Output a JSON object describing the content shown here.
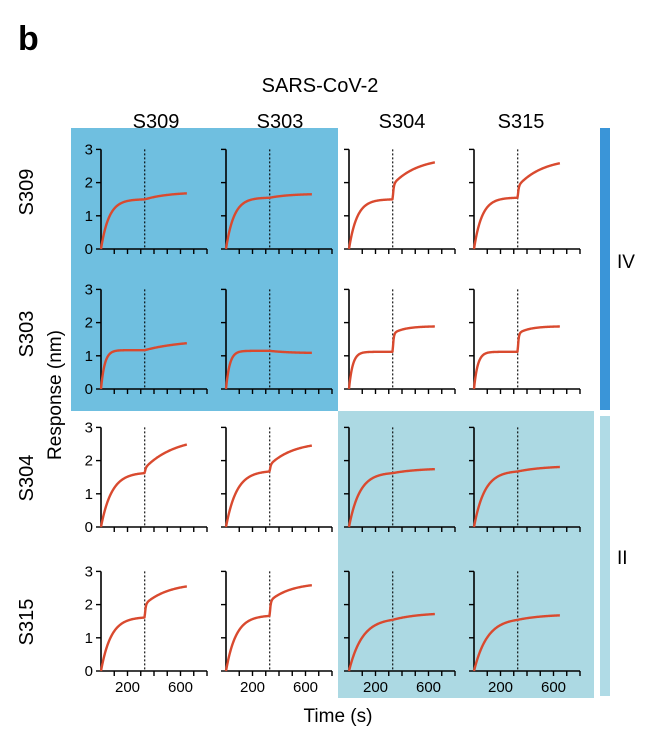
{
  "panel_letter": "b",
  "title": "SARS-CoV-2",
  "chart_data": {
    "type": "line",
    "title": "SARS-CoV-2",
    "xlabel": "Time (s)",
    "ylabel": "Response (nm)",
    "columns": [
      "S309",
      "S303",
      "S304",
      "S315"
    ],
    "rows": [
      "S309",
      "S303",
      "S304",
      "S315"
    ],
    "xlim": [
      0,
      800
    ],
    "ylim": [
      0,
      3
    ],
    "x_ticks": [
      200,
      600
    ],
    "y_ticks": [
      0,
      1,
      2,
      3
    ],
    "switch_time": 330,
    "end_time": 650,
    "grid": false,
    "legend": "none",
    "curve_color": "#d94a2f",
    "groups": [
      {
        "label": "IV",
        "members": [
          "S309",
          "S303"
        ],
        "color": "#3a95d8",
        "fill": "#6fbfe0"
      },
      {
        "label": "II",
        "members": [
          "S304",
          "S315"
        ],
        "color": "#b0dbe6",
        "fill": "#acd9e3"
      }
    ],
    "panels": [
      {
        "row": "S309",
        "col": "S309",
        "a1": 1.5,
        "t1": 60,
        "a2": 0.22,
        "t2": 180
      },
      {
        "row": "S309",
        "col": "S303",
        "a1": 1.55,
        "t1": 60,
        "a2": 0.12,
        "t2": 150
      },
      {
        "row": "S309",
        "col": "S304",
        "a1": 1.5,
        "t1": 60,
        "jump": 0.45,
        "a2": 0.82,
        "t2": 190
      },
      {
        "row": "S309",
        "col": "S315",
        "a1": 1.55,
        "t1": 60,
        "jump": 0.35,
        "a2": 0.85,
        "t2": 190
      },
      {
        "row": "S303",
        "col": "S309",
        "a1": 1.17,
        "t1": 28,
        "a2": 0.32,
        "t2": 300
      },
      {
        "row": "S303",
        "col": "S303",
        "a1": 1.15,
        "t1": 28,
        "a2": -0.07,
        "t2": 150
      },
      {
        "row": "S303",
        "col": "S304",
        "a1": 1.12,
        "t1": 28,
        "jump": 0.55,
        "a2": 0.22,
        "t2": 90
      },
      {
        "row": "S303",
        "col": "S315",
        "a1": 1.12,
        "t1": 28,
        "jump": 0.55,
        "a2": 0.22,
        "t2": 90
      },
      {
        "row": "S304",
        "col": "S309",
        "a1": 1.65,
        "t1": 80,
        "jump": 0.15,
        "a2": 0.95,
        "t2": 230
      },
      {
        "row": "S304",
        "col": "S303",
        "a1": 1.7,
        "t1": 80,
        "jump": 0.2,
        "a2": 0.7,
        "t2": 180
      },
      {
        "row": "S304",
        "col": "S304",
        "a1": 1.65,
        "t1": 80,
        "a2": 0.15,
        "t2": 200
      },
      {
        "row": "S304",
        "col": "S315",
        "a1": 1.7,
        "t1": 80,
        "a2": 0.17,
        "t2": 200
      },
      {
        "row": "S315",
        "col": "S309",
        "a1": 1.63,
        "t1": 75,
        "jump": 0.4,
        "a2": 0.65,
        "t2": 180
      },
      {
        "row": "S315",
        "col": "S303",
        "a1": 1.68,
        "t1": 75,
        "jump": 0.45,
        "a2": 0.55,
        "t2": 160
      },
      {
        "row": "S315",
        "col": "S304",
        "a1": 1.6,
        "t1": 100,
        "a2": 0.22,
        "t2": 200
      },
      {
        "row": "S315",
        "col": "S315",
        "a1": 1.6,
        "t1": 100,
        "a2": 0.17,
        "t2": 200
      }
    ]
  }
}
